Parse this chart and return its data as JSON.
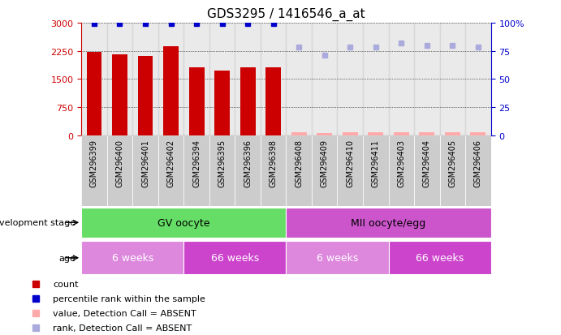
{
  "title": "GDS3295 / 1416546_a_at",
  "samples": [
    "GSM296399",
    "GSM296400",
    "GSM296401",
    "GSM296402",
    "GSM296394",
    "GSM296395",
    "GSM296396",
    "GSM296398",
    "GSM296408",
    "GSM296409",
    "GSM296410",
    "GSM296411",
    "GSM296403",
    "GSM296404",
    "GSM296405",
    "GSM296406"
  ],
  "count_values": [
    2230,
    2150,
    2120,
    2380,
    1820,
    1720,
    1820,
    1820,
    0,
    0,
    0,
    0,
    0,
    0,
    0,
    0
  ],
  "count_absent": [
    false,
    false,
    false,
    false,
    false,
    false,
    false,
    false,
    true,
    true,
    true,
    true,
    true,
    true,
    true,
    true
  ],
  "count_absent_values": [
    55,
    20,
    50,
    50,
    70,
    50,
    70,
    80,
    70,
    60,
    70,
    80,
    90,
    80,
    70,
    80
  ],
  "percentile_rank": [
    99,
    99,
    99,
    99,
    99,
    99,
    99,
    99,
    null,
    null,
    null,
    null,
    null,
    null,
    null,
    null
  ],
  "percentile_absent": [
    false,
    false,
    false,
    false,
    false,
    false,
    false,
    false,
    true,
    true,
    true,
    true,
    true,
    true,
    true,
    true
  ],
  "percentile_absent_values": [
    null,
    null,
    null,
    null,
    null,
    null,
    null,
    null,
    78,
    71,
    78,
    78,
    82,
    80,
    80,
    78
  ],
  "ylim_left": [
    0,
    3000
  ],
  "ylim_right": [
    0,
    100
  ],
  "yticks_left": [
    0,
    750,
    1500,
    2250,
    3000
  ],
  "yticks_right": [
    0,
    25,
    50,
    75,
    100
  ],
  "ytick_labels_right": [
    "0",
    "25",
    "50",
    "75",
    "100%"
  ],
  "bar_color": "#cc0000",
  "bar_absent_color": "#ffaaaa",
  "rank_color": "#0000cc",
  "rank_absent_color": "#aaaadd",
  "dev_stage_groups": [
    {
      "label": "GV oocyte",
      "start": 0,
      "end": 8,
      "color": "#66dd66"
    },
    {
      "label": "MII oocyte/egg",
      "start": 8,
      "end": 16,
      "color": "#cc55cc"
    }
  ],
  "age_groups": [
    {
      "label": "6 weeks",
      "start": 0,
      "end": 4,
      "color": "#dd88dd"
    },
    {
      "label": "66 weeks",
      "start": 4,
      "end": 8,
      "color": "#cc44cc"
    },
    {
      "label": "6 weeks",
      "start": 8,
      "end": 12,
      "color": "#dd88dd"
    },
    {
      "label": "66 weeks",
      "start": 12,
      "end": 16,
      "color": "#cc44cc"
    }
  ],
  "legend_items": [
    {
      "label": "count",
      "color": "#cc0000"
    },
    {
      "label": "percentile rank within the sample",
      "color": "#0000cc"
    },
    {
      "label": "value, Detection Call = ABSENT",
      "color": "#ffaaaa"
    },
    {
      "label": "rank, Detection Call = ABSENT",
      "color": "#aaaadd"
    }
  ],
  "background_color": "#ffffff",
  "sample_bg_color": "#cccccc",
  "grid_color": "#000000",
  "label_dev_stage": "development stage",
  "label_age": "age"
}
